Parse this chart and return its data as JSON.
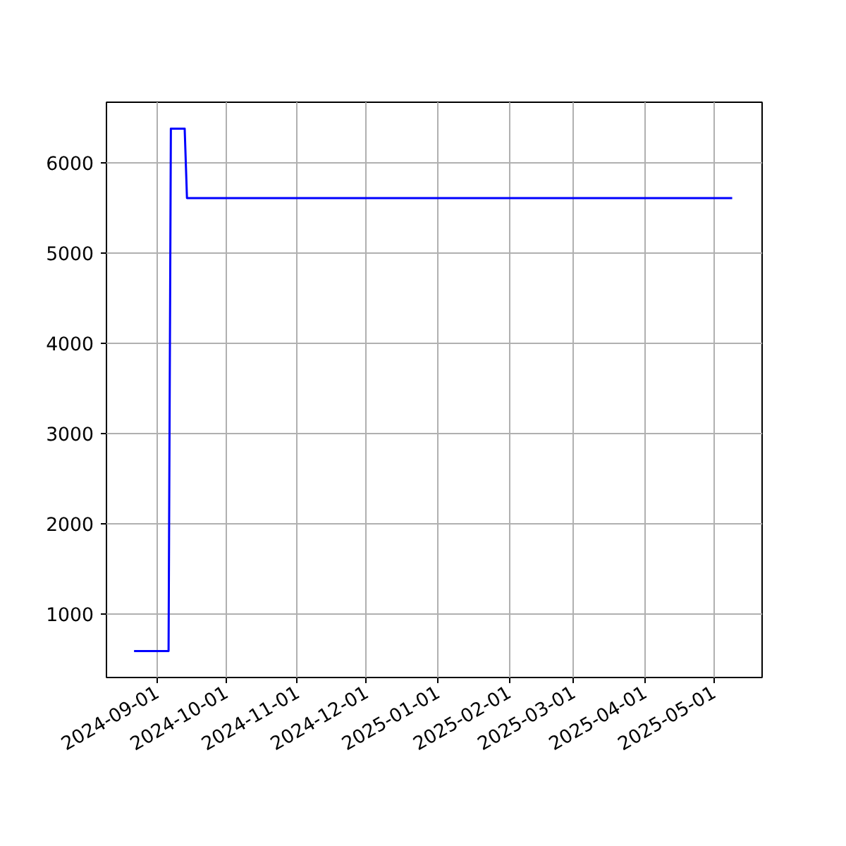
{
  "chart_data": {
    "type": "line",
    "x": [
      "2024-08-22",
      "2024-09-06",
      "2024-09-07",
      "2024-09-13",
      "2024-09-14",
      "2025-05-09"
    ],
    "series": [
      {
        "color": "#0000ff",
        "values": [
          590,
          590,
          6380,
          6380,
          5610,
          5610
        ]
      }
    ],
    "xlim": [
      "2024-08-10",
      "2025-05-22"
    ],
    "ylim": [
      297,
      6672
    ],
    "xticks": [
      "2024-09-01",
      "2024-10-01",
      "2024-11-01",
      "2024-12-01",
      "2025-01-01",
      "2025-02-01",
      "2025-03-01",
      "2025-04-01",
      "2025-05-01"
    ],
    "yticks": [
      1000,
      2000,
      3000,
      4000,
      5000,
      6000
    ],
    "grid": true,
    "line_style": "solid"
  }
}
